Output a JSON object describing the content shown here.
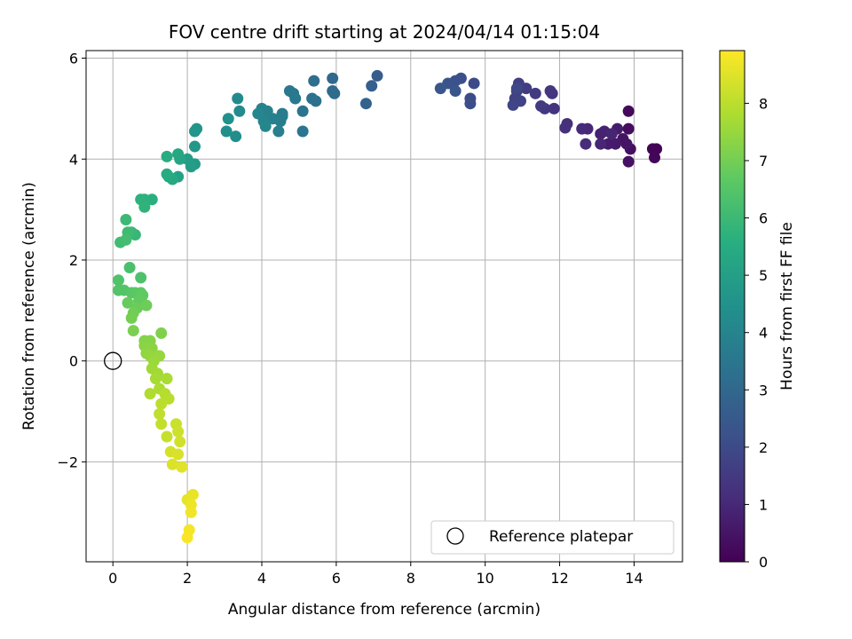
{
  "chart_data": {
    "type": "scatter",
    "title": "FOV centre drift starting at 2024/04/14 01:15:04",
    "xlabel": "Angular distance from reference (arcmin)",
    "ylabel": "Rotation from reference (arcmin)",
    "xlim": [
      -0.72,
      15.3
    ],
    "ylim": [
      -3.98,
      6.15
    ],
    "xticks": [
      0,
      2,
      4,
      6,
      8,
      10,
      12,
      14
    ],
    "yticks": [
      -2,
      0,
      2,
      4,
      6
    ],
    "grid": true,
    "colormap": "viridis",
    "colorbar": {
      "label": "Hours from first FF file",
      "range": [
        0,
        8.92
      ],
      "ticks": [
        0,
        1,
        2,
        3,
        4,
        5,
        6,
        7,
        8
      ]
    },
    "legend": {
      "position": "lower-right",
      "entries": [
        "Reference platepar"
      ]
    },
    "reference_point": {
      "x": 0,
      "y": 0,
      "label": "Reference platepar"
    },
    "points": [
      {
        "x": 14.6,
        "y": 4.2,
        "t": 0.05
      },
      {
        "x": 14.5,
        "y": 4.2,
        "t": 0.1
      },
      {
        "x": 14.55,
        "y": 4.03,
        "t": 0.12
      },
      {
        "x": 13.85,
        "y": 4.95,
        "t": 0.2
      },
      {
        "x": 13.85,
        "y": 4.6,
        "t": 0.3
      },
      {
        "x": 13.9,
        "y": 4.2,
        "t": 0.35
      },
      {
        "x": 13.85,
        "y": 3.95,
        "t": 0.4
      },
      {
        "x": 13.7,
        "y": 4.4,
        "t": 0.45
      },
      {
        "x": 13.8,
        "y": 4.3,
        "t": 0.5
      },
      {
        "x": 13.5,
        "y": 4.3,
        "t": 0.6
      },
      {
        "x": 13.3,
        "y": 4.3,
        "t": 0.65
      },
      {
        "x": 13.55,
        "y": 4.6,
        "t": 0.7
      },
      {
        "x": 13.1,
        "y": 4.5,
        "t": 0.8
      },
      {
        "x": 13.2,
        "y": 4.55,
        "t": 0.85
      },
      {
        "x": 13.4,
        "y": 4.5,
        "t": 0.9
      },
      {
        "x": 13.1,
        "y": 4.3,
        "t": 0.95
      },
      {
        "x": 12.75,
        "y": 4.6,
        "t": 1.0
      },
      {
        "x": 12.6,
        "y": 4.6,
        "t": 1.05
      },
      {
        "x": 12.7,
        "y": 4.3,
        "t": 1.1
      },
      {
        "x": 12.2,
        "y": 4.7,
        "t": 1.2
      },
      {
        "x": 12.15,
        "y": 4.62,
        "t": 1.25
      },
      {
        "x": 11.85,
        "y": 5.0,
        "t": 1.3
      },
      {
        "x": 11.8,
        "y": 5.3,
        "t": 1.35
      },
      {
        "x": 11.75,
        "y": 5.35,
        "t": 1.4
      },
      {
        "x": 11.6,
        "y": 5.0,
        "t": 1.45
      },
      {
        "x": 11.5,
        "y": 5.05,
        "t": 1.5
      },
      {
        "x": 11.35,
        "y": 5.3,
        "t": 1.55
      },
      {
        "x": 11.1,
        "y": 5.4,
        "t": 1.6
      },
      {
        "x": 10.9,
        "y": 5.5,
        "t": 1.65
      },
      {
        "x": 10.85,
        "y": 5.35,
        "t": 1.7
      },
      {
        "x": 10.8,
        "y": 5.2,
        "t": 1.75
      },
      {
        "x": 10.95,
        "y": 5.15,
        "t": 1.8
      },
      {
        "x": 10.75,
        "y": 5.07,
        "t": 1.85
      },
      {
        "x": 10.85,
        "y": 5.4,
        "t": 1.9
      },
      {
        "x": 9.7,
        "y": 5.5,
        "t": 2.0
      },
      {
        "x": 9.6,
        "y": 5.2,
        "t": 2.05
      },
      {
        "x": 9.6,
        "y": 5.1,
        "t": 2.1
      },
      {
        "x": 9.35,
        "y": 5.6,
        "t": 2.15
      },
      {
        "x": 9.2,
        "y": 5.55,
        "t": 2.2
      },
      {
        "x": 9.0,
        "y": 5.5,
        "t": 2.3
      },
      {
        "x": 9.2,
        "y": 5.35,
        "t": 2.35
      },
      {
        "x": 8.8,
        "y": 5.4,
        "t": 2.4
      },
      {
        "x": 7.1,
        "y": 5.65,
        "t": 2.6
      },
      {
        "x": 6.95,
        "y": 5.45,
        "t": 2.7
      },
      {
        "x": 6.8,
        "y": 5.1,
        "t": 2.8
      },
      {
        "x": 5.9,
        "y": 5.6,
        "t": 3.0
      },
      {
        "x": 5.9,
        "y": 5.35,
        "t": 3.05
      },
      {
        "x": 5.95,
        "y": 5.3,
        "t": 3.1
      },
      {
        "x": 5.4,
        "y": 5.55,
        "t": 3.2
      },
      {
        "x": 5.45,
        "y": 5.15,
        "t": 3.3
      },
      {
        "x": 5.35,
        "y": 5.2,
        "t": 3.35
      },
      {
        "x": 5.1,
        "y": 4.95,
        "t": 3.4
      },
      {
        "x": 5.1,
        "y": 4.55,
        "t": 3.45
      },
      {
        "x": 4.85,
        "y": 5.3,
        "t": 3.5
      },
      {
        "x": 4.75,
        "y": 5.35,
        "t": 3.55
      },
      {
        "x": 4.9,
        "y": 5.2,
        "t": 3.6
      },
      {
        "x": 4.55,
        "y": 4.9,
        "t": 3.65
      },
      {
        "x": 4.5,
        "y": 4.75,
        "t": 3.7
      },
      {
        "x": 4.55,
        "y": 4.85,
        "t": 3.75
      },
      {
        "x": 4.45,
        "y": 4.55,
        "t": 3.8
      },
      {
        "x": 4.3,
        "y": 4.8,
        "t": 3.85
      },
      {
        "x": 4.15,
        "y": 4.95,
        "t": 3.9
      },
      {
        "x": 4.0,
        "y": 5.0,
        "t": 3.95
      },
      {
        "x": 4.05,
        "y": 4.75,
        "t": 4.0
      },
      {
        "x": 4.1,
        "y": 4.65,
        "t": 4.05
      },
      {
        "x": 3.9,
        "y": 4.9,
        "t": 4.1
      },
      {
        "x": 3.4,
        "y": 4.95,
        "t": 4.2
      },
      {
        "x": 3.35,
        "y": 5.2,
        "t": 4.25
      },
      {
        "x": 3.3,
        "y": 4.45,
        "t": 4.3
      },
      {
        "x": 3.05,
        "y": 4.55,
        "t": 4.4
      },
      {
        "x": 3.1,
        "y": 4.8,
        "t": 4.45
      },
      {
        "x": 2.25,
        "y": 4.6,
        "t": 4.6
      },
      {
        "x": 2.2,
        "y": 4.55,
        "t": 4.65
      },
      {
        "x": 2.2,
        "y": 4.25,
        "t": 4.7
      },
      {
        "x": 2.2,
        "y": 3.9,
        "t": 4.8
      },
      {
        "x": 2.1,
        "y": 3.85,
        "t": 4.9
      },
      {
        "x": 2.0,
        "y": 4.0,
        "t": 5.0
      },
      {
        "x": 1.75,
        "y": 3.65,
        "t": 5.1
      },
      {
        "x": 1.8,
        "y": 4.0,
        "t": 5.2
      },
      {
        "x": 1.75,
        "y": 4.1,
        "t": 5.25
      },
      {
        "x": 1.6,
        "y": 3.6,
        "t": 5.35
      },
      {
        "x": 1.5,
        "y": 3.65,
        "t": 5.4
      },
      {
        "x": 1.45,
        "y": 3.7,
        "t": 5.45
      },
      {
        "x": 1.45,
        "y": 4.05,
        "t": 5.5
      },
      {
        "x": 1.05,
        "y": 3.2,
        "t": 5.6
      },
      {
        "x": 0.85,
        "y": 3.2,
        "t": 5.65
      },
      {
        "x": 0.75,
        "y": 3.2,
        "t": 5.7
      },
      {
        "x": 0.85,
        "y": 3.05,
        "t": 5.75
      },
      {
        "x": 0.6,
        "y": 2.5,
        "t": 5.9
      },
      {
        "x": 0.5,
        "y": 2.55,
        "t": 5.95
      },
      {
        "x": 0.35,
        "y": 2.8,
        "t": 6.0
      },
      {
        "x": 0.4,
        "y": 2.55,
        "t": 6.05
      },
      {
        "x": 0.2,
        "y": 2.35,
        "t": 6.1
      },
      {
        "x": 0.35,
        "y": 2.4,
        "t": 6.15
      },
      {
        "x": 0.45,
        "y": 1.85,
        "t": 6.3
      },
      {
        "x": 0.75,
        "y": 1.65,
        "t": 6.35
      },
      {
        "x": 0.15,
        "y": 1.6,
        "t": 6.4
      },
      {
        "x": 0.15,
        "y": 1.4,
        "t": 6.45
      },
      {
        "x": 0.3,
        "y": 1.4,
        "t": 6.5
      },
      {
        "x": 0.5,
        "y": 1.35,
        "t": 6.55
      },
      {
        "x": 0.6,
        "y": 1.35,
        "t": 6.6
      },
      {
        "x": 0.75,
        "y": 1.35,
        "t": 6.65
      },
      {
        "x": 0.8,
        "y": 1.3,
        "t": 6.7
      },
      {
        "x": 0.7,
        "y": 1.2,
        "t": 6.75
      },
      {
        "x": 0.4,
        "y": 1.15,
        "t": 6.8
      },
      {
        "x": 0.65,
        "y": 1.05,
        "t": 6.85
      },
      {
        "x": 0.9,
        "y": 1.1,
        "t": 6.9
      },
      {
        "x": 0.55,
        "y": 0.95,
        "t": 6.95
      },
      {
        "x": 0.5,
        "y": 0.85,
        "t": 7.0
      },
      {
        "x": 0.55,
        "y": 0.6,
        "t": 7.1
      },
      {
        "x": 1.3,
        "y": 0.55,
        "t": 7.15
      },
      {
        "x": 0.85,
        "y": 0.4,
        "t": 7.2
      },
      {
        "x": 1.0,
        "y": 0.4,
        "t": 7.25
      },
      {
        "x": 0.85,
        "y": 0.3,
        "t": 7.3
      },
      {
        "x": 1.05,
        "y": 0.25,
        "t": 7.35
      },
      {
        "x": 0.9,
        "y": 0.15,
        "t": 7.4
      },
      {
        "x": 1.0,
        "y": 0.1,
        "t": 7.45
      },
      {
        "x": 1.25,
        "y": 0.1,
        "t": 7.5
      },
      {
        "x": 1.1,
        "y": 0.0,
        "t": 7.55
      },
      {
        "x": 1.05,
        "y": -0.15,
        "t": 7.6
      },
      {
        "x": 1.2,
        "y": -0.25,
        "t": 7.65
      },
      {
        "x": 1.15,
        "y": -0.35,
        "t": 7.7
      },
      {
        "x": 1.45,
        "y": -0.35,
        "t": 7.75
      },
      {
        "x": 1.25,
        "y": -0.55,
        "t": 7.8
      },
      {
        "x": 1.0,
        "y": -0.65,
        "t": 7.85
      },
      {
        "x": 1.4,
        "y": -0.65,
        "t": 7.9
      },
      {
        "x": 1.5,
        "y": -0.75,
        "t": 7.95
      },
      {
        "x": 1.3,
        "y": -0.85,
        "t": 8.0
      },
      {
        "x": 1.25,
        "y": -1.05,
        "t": 8.05
      },
      {
        "x": 1.3,
        "y": -1.25,
        "t": 8.1
      },
      {
        "x": 1.45,
        "y": -1.5,
        "t": 8.15
      },
      {
        "x": 1.7,
        "y": -1.25,
        "t": 8.2
      },
      {
        "x": 1.75,
        "y": -1.4,
        "t": 8.25
      },
      {
        "x": 1.8,
        "y": -1.6,
        "t": 8.3
      },
      {
        "x": 1.55,
        "y": -1.8,
        "t": 8.35
      },
      {
        "x": 1.75,
        "y": -1.85,
        "t": 8.4
      },
      {
        "x": 1.6,
        "y": -2.05,
        "t": 8.45
      },
      {
        "x": 1.85,
        "y": -2.1,
        "t": 8.5
      },
      {
        "x": 2.0,
        "y": -2.75,
        "t": 8.6
      },
      {
        "x": 2.15,
        "y": -2.65,
        "t": 8.65
      },
      {
        "x": 2.1,
        "y": -2.85,
        "t": 8.7
      },
      {
        "x": 2.1,
        "y": -3.0,
        "t": 8.75
      },
      {
        "x": 2.05,
        "y": -3.35,
        "t": 8.8
      },
      {
        "x": 2.0,
        "y": -3.5,
        "t": 8.85
      }
    ]
  }
}
